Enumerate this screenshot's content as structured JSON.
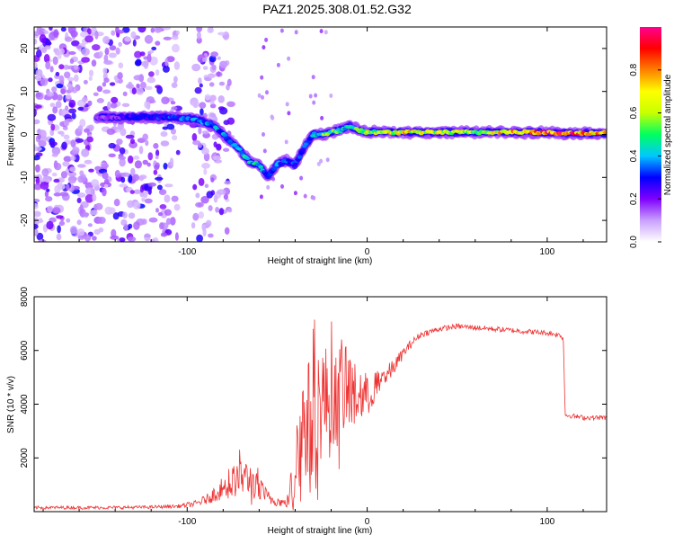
{
  "title": "PAZ1.2025.308.01.52.G32",
  "chart_data": [
    {
      "type": "heatmap",
      "xlabel": "Height of straight line (km)",
      "ylabel": "Frequency (Hz)",
      "xlim": [
        -185,
        133
      ],
      "ylim": [
        -25,
        25
      ],
      "xticks": [
        -100,
        0,
        100
      ],
      "xtick_labels": [
        "-100",
        "0",
        "100"
      ],
      "yticks": [
        -20,
        -10,
        0,
        10,
        20
      ],
      "ytick_labels": [
        "-20",
        "-10",
        "0",
        "10",
        "20"
      ],
      "colorbar": {
        "label": "Normalized spectral amplitude",
        "range": [
          0.0,
          1.0
        ],
        "ticks": [
          0.0,
          0.2,
          0.4,
          0.6,
          0.8
        ],
        "tick_labels": [
          "0.0",
          "0.2",
          "0.4",
          "0.6",
          "0.8"
        ],
        "colors": [
          "#ffffff",
          "#c9a0ff",
          "#8000ff",
          "#0000ff",
          "#00c8ff",
          "#00ff60",
          "#c8ff00",
          "#ffff00",
          "#ff8000",
          "#ff0000",
          "#ff0090"
        ]
      },
      "ridge": {
        "x": [
          -185,
          -150,
          -130,
          -110,
          -95,
          -85,
          -80,
          -75,
          -70,
          -65,
          -60,
          -55,
          -50,
          -45,
          -40,
          -35,
          -30,
          -25,
          -20,
          -15,
          -10,
          -5,
          0,
          20,
          40,
          60,
          80,
          100,
          110,
          120,
          133
        ],
        "freq": [
          4,
          4,
          4,
          4,
          3.5,
          2,
          0,
          -2,
          -4,
          -6.5,
          -7,
          -10,
          -7,
          -6,
          -7,
          -3,
          0,
          0,
          0.5,
          1,
          2,
          1,
          0.5,
          0.5,
          0.5,
          0.5,
          0.5,
          0.5,
          0.3,
          0.3,
          0.3
        ],
        "amplitude": [
          0.1,
          0.15,
          0.25,
          0.3,
          0.35,
          0.35,
          0.35,
          0.35,
          0.4,
          0.45,
          0.4,
          0.3,
          0.35,
          0.3,
          0.3,
          0.35,
          0.35,
          0.5,
          0.55,
          0.5,
          0.4,
          0.5,
          0.55,
          0.65,
          0.6,
          0.6,
          0.7,
          0.85,
          0.9,
          0.75,
          0.7
        ]
      }
    },
    {
      "type": "line",
      "xlabel": "Height of straight line (km)",
      "ylabel": "SNR (10 * v/v)",
      "xlim": [
        -185,
        133
      ],
      "ylim": [
        0,
        8000
      ],
      "xticks": [
        -100,
        0,
        100
      ],
      "xtick_labels": [
        "-100",
        "0",
        "100"
      ],
      "yticks": [
        2000,
        4000,
        6000,
        8000
      ],
      "ytick_labels": [
        "2000",
        "4000",
        "6000",
        "8000"
      ],
      "series": [
        {
          "name": "SNR",
          "color": "#ee3333",
          "x": [
            -185,
            -160,
            -140,
            -120,
            -105,
            -95,
            -88,
            -80,
            -75,
            -70,
            -65,
            -60,
            -55,
            -50,
            -45,
            -41,
            -38,
            -35,
            -30,
            -25,
            -20,
            -15,
            -10,
            -5,
            0,
            5,
            10,
            15,
            20,
            25,
            30,
            40,
            50,
            60,
            70,
            80,
            90,
            100,
            105,
            108,
            109,
            110,
            115,
            120,
            133
          ],
          "y": [
            150,
            150,
            150,
            170,
            200,
            300,
            500,
            900,
            1100,
            1300,
            1200,
            800,
            500,
            400,
            300,
            800,
            2500,
            3300,
            3700,
            4200,
            4000,
            4400,
            4500,
            4300,
            4300,
            4600,
            5000,
            5400,
            5900,
            6300,
            6600,
            6800,
            6900,
            6850,
            6800,
            6750,
            6700,
            6650,
            6600,
            6550,
            6400,
            3600,
            3550,
            3500,
            3500
          ],
          "noise": [
            60,
            60,
            60,
            60,
            70,
            120,
            200,
            450,
            600,
            700,
            650,
            500,
            300,
            200,
            150,
            800,
            1800,
            2200,
            2200,
            2300,
            2000,
            1800,
            1500,
            1000,
            700,
            500,
            400,
            300,
            200,
            150,
            120,
            100,
            100,
            100,
            100,
            100,
            100,
            100,
            100,
            100,
            100,
            90,
            90,
            90,
            90
          ]
        }
      ]
    }
  ]
}
